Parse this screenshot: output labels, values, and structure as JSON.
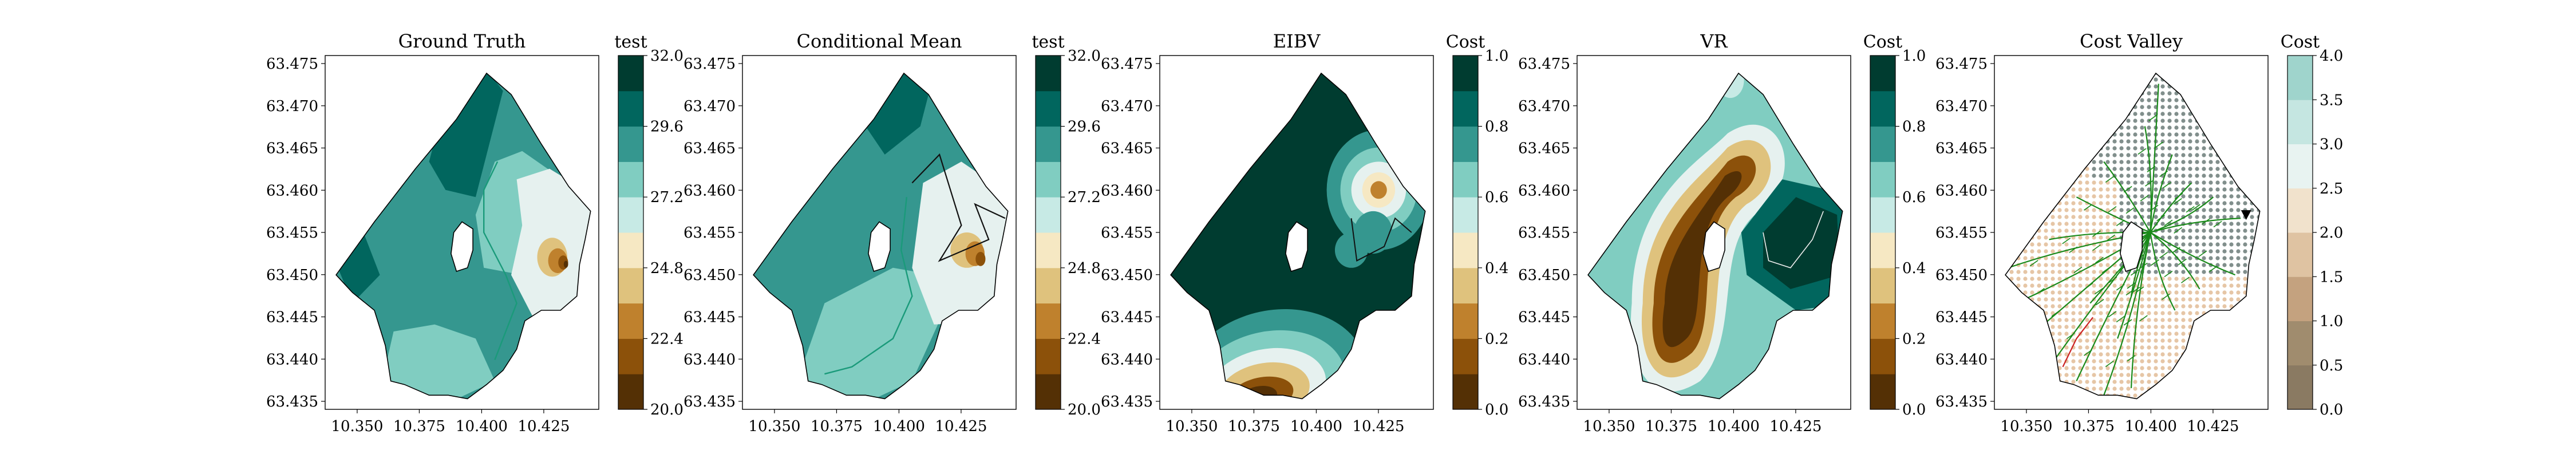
{
  "colors": {
    "boundary": "#000000",
    "path_black": "#111111",
    "tree_green": "#1a8a1a",
    "tree_red": "#cc2222",
    "dot_gray": "#6b7b78",
    "dot_beige": "#d9a877",
    "cbar": [
      "#543005",
      "#8c510a",
      "#bf812d",
      "#dfc27d",
      "#f6e8c3",
      "#e6f1ef",
      "#c7eae5",
      "#80cdc1",
      "#35978f",
      "#01665e",
      "#003c30"
    ],
    "cost_valley_cbar": [
      "#8a7a62",
      "#a08c6e",
      "#c4a27f",
      "#dfc3a2",
      "#f1e2cc",
      "#e8f3f1",
      "#c5e6e1",
      "#9fd4cc",
      "#6eaea6",
      "#4f8e86",
      "#5d7f79"
    ]
  },
  "chart_data": [
    {
      "type": "heatmap",
      "title": "Ground Truth",
      "colorbar_label": "test",
      "colorbar_ticks": [
        "32.0",
        "29.6",
        "27.2",
        "24.8",
        "22.4",
        "20.0"
      ],
      "value_range": [
        20.0,
        32.0
      ],
      "x_ticks": [
        "10.350",
        "10.375",
        "10.400",
        "10.425"
      ],
      "y_ticks": [
        "63.475",
        "63.470",
        "63.465",
        "63.460",
        "63.455",
        "63.450",
        "63.445",
        "63.440",
        "63.435"
      ],
      "xlim": [
        10.337,
        10.447
      ],
      "ylim": [
        63.4325,
        63.4765
      ],
      "field": [
        {
          "x": 10.365,
          "y": 63.445,
          "value": 28.5
        },
        {
          "x": 10.385,
          "y": 63.465,
          "value": 30.0
        },
        {
          "x": 10.375,
          "y": 63.44,
          "value": 28.0
        },
        {
          "x": 10.42,
          "y": 63.452,
          "value": 24.0
        },
        {
          "x": 10.428,
          "y": 63.449,
          "value": 21.0
        }
      ]
    },
    {
      "type": "heatmap",
      "title": "Conditional Mean",
      "colorbar_label": "test",
      "colorbar_ticks": [
        "32.0",
        "29.6",
        "27.2",
        "24.8",
        "22.4",
        "20.0"
      ],
      "value_range": [
        20.0,
        32.0
      ],
      "x_ticks": [
        "10.350",
        "10.375",
        "10.400",
        "10.425"
      ],
      "y_ticks": [
        "63.475",
        "63.470",
        "63.465",
        "63.460",
        "63.455",
        "63.450",
        "63.445",
        "63.440",
        "63.435"
      ],
      "xlim": [
        10.337,
        10.447
      ],
      "ylim": [
        63.4325,
        63.4765
      ],
      "field": [
        {
          "x": 10.37,
          "y": 63.458,
          "value": 29.0
        },
        {
          "x": 10.38,
          "y": 63.445,
          "value": 28.0
        },
        {
          "x": 10.42,
          "y": 63.452,
          "value": 26.0
        },
        {
          "x": 10.428,
          "y": 63.45,
          "value": 22.0
        }
      ]
    },
    {
      "type": "heatmap",
      "title": "EIBV",
      "colorbar_label": "Cost",
      "colorbar_ticks": [
        "1.0",
        "0.8",
        "0.6",
        "0.4",
        "0.2",
        "0.0"
      ],
      "value_range": [
        0.0,
        1.0
      ],
      "x_ticks": [
        "10.350",
        "10.375",
        "10.400",
        "10.425"
      ],
      "y_ticks": [
        "63.475",
        "63.470",
        "63.465",
        "63.460",
        "63.455",
        "63.450",
        "63.445",
        "63.440",
        "63.435"
      ],
      "xlim": [
        10.337,
        10.447
      ],
      "ylim": [
        63.4325,
        63.4765
      ],
      "field": [
        {
          "x": 10.38,
          "y": 63.455,
          "value": 1.0
        },
        {
          "x": 10.378,
          "y": 63.437,
          "value": 0.0
        },
        {
          "x": 10.418,
          "y": 63.458,
          "value": 0.3
        },
        {
          "x": 10.41,
          "y": 63.448,
          "value": 0.6
        }
      ]
    },
    {
      "type": "heatmap",
      "title": "VR",
      "colorbar_label": "Cost",
      "colorbar_ticks": [
        "1.0",
        "0.8",
        "0.6",
        "0.4",
        "0.2",
        "0.0"
      ],
      "value_range": [
        0.0,
        1.0
      ],
      "x_ticks": [
        "10.350",
        "10.375",
        "10.400",
        "10.425"
      ],
      "y_ticks": [
        "63.475",
        "63.470",
        "63.465",
        "63.460",
        "63.455",
        "63.450",
        "63.445",
        "63.440",
        "63.435"
      ],
      "xlim": [
        10.337,
        10.447
      ],
      "ylim": [
        63.4325,
        63.4765
      ],
      "field": [
        {
          "x": 10.372,
          "y": 63.446,
          "value": 0.0
        },
        {
          "x": 10.392,
          "y": 63.46,
          "value": 0.1
        },
        {
          "x": 10.42,
          "y": 63.452,
          "value": 1.0
        },
        {
          "x": 10.4,
          "y": 63.472,
          "value": 0.7
        }
      ]
    },
    {
      "type": "scatter",
      "title": "Cost Valley",
      "colorbar_label": "Cost",
      "colorbar_ticks": [
        "4.0",
        "3.5",
        "3.0",
        "2.5",
        "2.0",
        "1.5",
        "1.0",
        "0.5",
        "0.0"
      ],
      "value_range": [
        0.0,
        4.0
      ],
      "x_ticks": [
        "10.350",
        "10.375",
        "10.400",
        "10.425"
      ],
      "y_ticks": [
        "63.475",
        "63.470",
        "63.465",
        "63.460",
        "63.455",
        "63.450",
        "63.445",
        "63.440",
        "63.435"
      ],
      "xlim": [
        10.337,
        10.447
      ],
      "ylim": [
        63.4325,
        63.4765
      ],
      "tree_root": {
        "x": 10.4,
        "y": 63.452
      },
      "target_marker": {
        "x": 10.433,
        "y": 63.456
      }
    }
  ]
}
